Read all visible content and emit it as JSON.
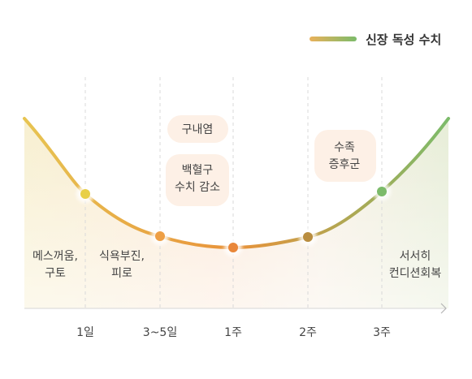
{
  "chart_data": {
    "type": "line",
    "title": "",
    "legend": {
      "label": "신장 독성 수치",
      "position": "top-right"
    },
    "colors": {
      "start": "#e7c452",
      "middle": "#e8923a",
      "end": "#7cbb6a"
    },
    "x_categories": [
      "1일",
      "3~5일",
      "1주",
      "2주",
      "3주"
    ],
    "series": [
      {
        "name": "신장 독성 수치",
        "points": [
          "1일",
          "3~5일",
          "1주",
          "2주",
          "3주"
        ]
      }
    ],
    "annotations": [
      {
        "id": "a1",
        "lines": [
          "메스꺼움,",
          "구토"
        ]
      },
      {
        "id": "a2",
        "lines": [
          "식욕부진,",
          "피로"
        ]
      },
      {
        "id": "a3",
        "lines": [
          "구내염"
        ]
      },
      {
        "id": "a4",
        "lines": [
          "백혈구",
          "수치 감소"
        ]
      },
      {
        "id": "a5",
        "lines": [
          "수족",
          "증후군"
        ]
      },
      {
        "id": "a6",
        "lines": [
          "서서히",
          "컨디션회복"
        ]
      }
    ],
    "grid": "vertical-dashed"
  }
}
